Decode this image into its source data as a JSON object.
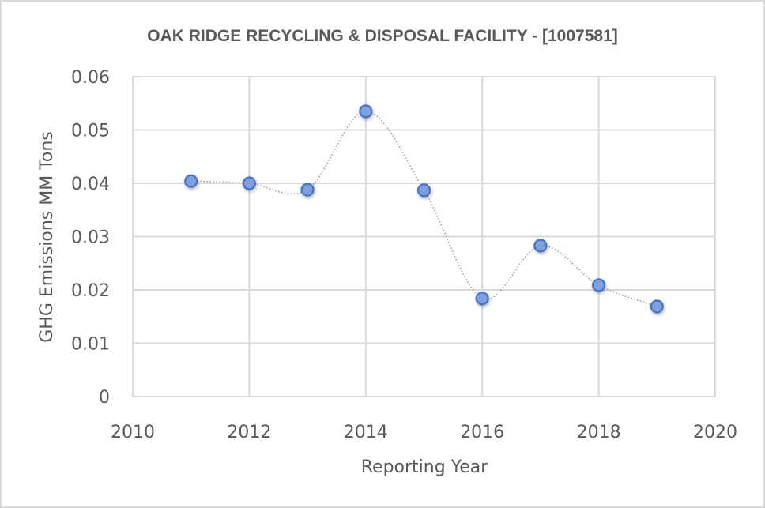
{
  "chart_data": {
    "type": "scatter",
    "title": "OAK RIDGE RECYCLING & DISPOSAL FACILITY - [1007581]",
    "xlabel": "Reporting Year",
    "ylabel": "GHG Emissions MM Tons",
    "xlim": [
      2010,
      2020
    ],
    "ylim": [
      0,
      0.06
    ],
    "x_ticks": [
      "2010",
      "2012",
      "2014",
      "2016",
      "2018",
      "2020"
    ],
    "y_ticks": [
      "0",
      "0.01",
      "0.02",
      "0.03",
      "0.04",
      "0.05",
      "0.06"
    ],
    "x_tick_values": [
      2010,
      2012,
      2014,
      2016,
      2018,
      2020
    ],
    "y_tick_values": [
      0,
      0.01,
      0.02,
      0.03,
      0.04,
      0.05,
      0.06
    ],
    "grid": true,
    "legend": "none",
    "line_style": "smoothed-dotted",
    "series": [
      {
        "name": "GHG Emissions",
        "x": [
          2011,
          2012,
          2013,
          2014,
          2015,
          2016,
          2017,
          2018,
          2019
        ],
        "y": [
          0.0404,
          0.04,
          0.0388,
          0.0535,
          0.0387,
          0.0184,
          0.0283,
          0.0209,
          0.0169
        ],
        "marker_fill": "#7fa0dc",
        "marker_stroke": "#4472c4",
        "line_color": "#9a9a9a"
      }
    ]
  }
}
